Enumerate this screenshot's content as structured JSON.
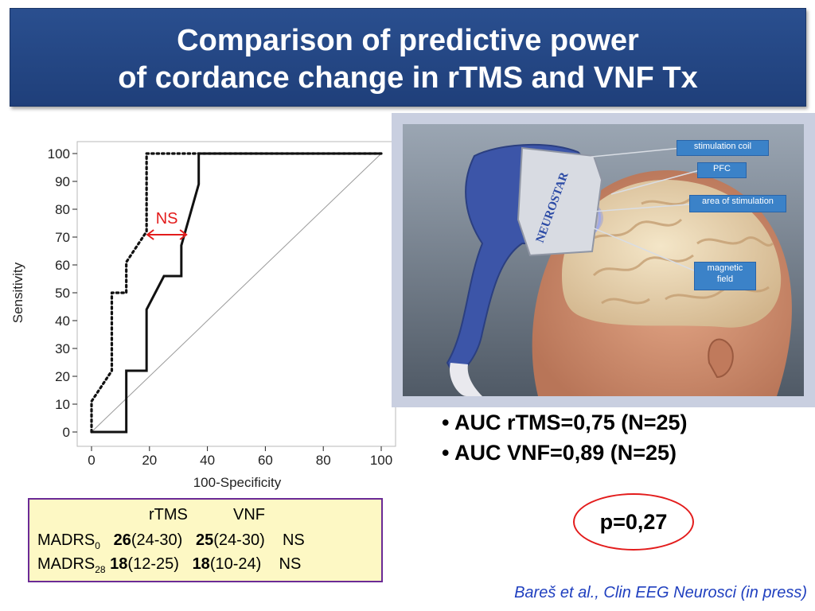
{
  "title": {
    "line1": "Comparison of predictive power",
    "line2": "of cordance change in rTMS and VNF Tx"
  },
  "chart_data": {
    "type": "line",
    "xlabel": "100-Specificity",
    "ylabel": "Sensitivity",
    "xlim": [
      0,
      100
    ],
    "ylim": [
      0,
      100
    ],
    "x_ticks": [
      0,
      20,
      40,
      60,
      80,
      100
    ],
    "y_ticks": [
      0,
      10,
      20,
      30,
      40,
      50,
      60,
      70,
      80,
      90,
      100
    ],
    "series": [
      {
        "style": "solid",
        "x": [
          0,
          12,
          12,
          19,
          19,
          25,
          31,
          31,
          37,
          37,
          100
        ],
        "y": [
          0,
          0,
          22,
          22,
          44,
          56,
          56,
          67,
          89,
          100,
          100
        ]
      },
      {
        "style": "dotted",
        "x": [
          0,
          0,
          7,
          7,
          12,
          12,
          19,
          19,
          100
        ],
        "y": [
          0,
          11,
          22,
          50,
          50,
          61,
          72,
          100,
          100
        ]
      },
      {
        "style": "diagonal",
        "x": [
          0,
          100
        ],
        "y": [
          0,
          100
        ]
      }
    ],
    "annotations": [
      {
        "text": "NS",
        "color": "#e31c1c",
        "x_from": 19,
        "x_to": 33,
        "y": 72
      }
    ]
  },
  "image_callouts": {
    "coil": "stimulation coil",
    "pfc": "PFC",
    "area": "area of stimulation",
    "magnetic_line1": "magnetic",
    "magnetic_line2": "field",
    "device_brand": "NEUROSTAR"
  },
  "auc": {
    "rtms": "• AUC rTMS=0,75 (N=25)",
    "vnf": "• AUC   VNF=0,89 (N=25)"
  },
  "p_value": "p=0,27",
  "table": {
    "header_rtms": "rTMS",
    "header_vnf": "VNF",
    "row1_label": "MADRS",
    "row1_sub": "0",
    "row1_rtms_bold": "26",
    "row1_rtms_range": "(24-30)",
    "row1_vnf_bold": "25",
    "row1_vnf_range": "(24-30)",
    "row1_sig": "NS",
    "row2_label": "MADRS",
    "row2_sub": "28",
    "row2_rtms_bold": "18",
    "row2_rtms_range": "(12-25)",
    "row2_vnf_bold": "18",
    "row2_vnf_range": "(10-24)",
    "row2_sig": "NS"
  },
  "citation": "Bareš et al., Clin EEG Neurosci (in press)",
  "colors": {
    "title_bg": "#2a4f8f",
    "annotation_red": "#e31c1c",
    "table_bg": "#fdf8c4",
    "table_border": "#6a2a96",
    "citation_blue": "#1f3fbf",
    "callout_blue": "#3b82c8"
  }
}
